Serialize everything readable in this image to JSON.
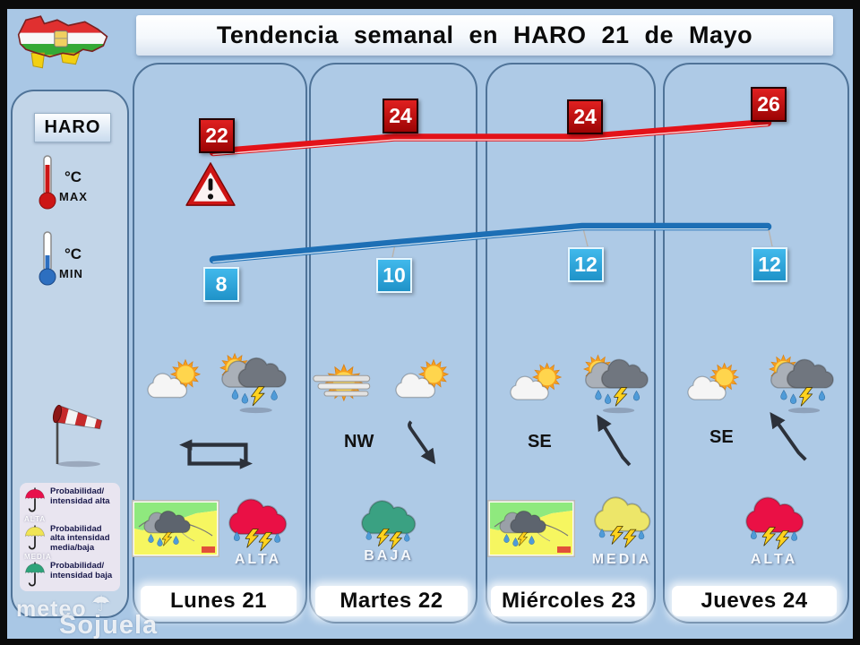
{
  "title": "Tendencia semanal en HARO 21 de Mayo",
  "sidebar": {
    "station": "HARO",
    "max_unit": "°C",
    "max_label": "MAX",
    "min_unit": "°C",
    "min_label": "MIN",
    "legend": [
      {
        "umbrella_color": "#e8104c",
        "tag": "ALTA",
        "text": "Probabilidad/ intensidad alta"
      },
      {
        "umbrella_color": "#f0e455",
        "tag": "MEDIA",
        "text": "Probabilidad alta intensidad media/baja"
      },
      {
        "umbrella_color": "#2ea37a",
        "tag": "",
        "text": "Probabilidad/ intensidad baja"
      }
    ],
    "watermark": {
      "word1": "meteo",
      "word2": "Sojuela",
      "umbrella_glyph": "☂"
    }
  },
  "days": [
    {
      "name": "Lunes 21",
      "wind_label": "",
      "wind_type": "variable-loop",
      "precip_level": "ALTA",
      "precip_color": "#ea1045",
      "has_warning_map": true,
      "has_alert_triangle": true
    },
    {
      "name": "Martes 22",
      "wind_label": "NW",
      "wind_type": "arrow-to-southeast",
      "precip_level": "BAJA",
      "precip_color": "#3aa182",
      "has_warning_map": false,
      "has_alert_triangle": false
    },
    {
      "name": "Miércoles 23",
      "wind_label": "SE",
      "wind_type": "arrow-to-northwest",
      "precip_level": "MEDIA",
      "precip_color": "#ede669",
      "has_warning_map": true,
      "has_alert_triangle": false
    },
    {
      "name": "Jueves 24",
      "wind_label": "SE",
      "wind_type": "arrow-to-northwest",
      "precip_level": "ALTA",
      "precip_color": "#ea1045",
      "has_warning_map": false,
      "has_alert_triangle": false
    }
  ],
  "chart_data": {
    "type": "line",
    "title": "Tendencia semanal en HARO 21 de Mayo",
    "categories": [
      "Lunes 21",
      "Martes 22",
      "Miércoles 23",
      "Jueves 24"
    ],
    "series": [
      {
        "name": "Temperatura máxima (°C)",
        "color": "#e31219",
        "values": [
          22,
          24,
          24,
          26
        ]
      },
      {
        "name": "Temperatura mínima (°C)",
        "color": "#1d6fb5",
        "values": [
          8,
          10,
          12,
          12
        ]
      }
    ],
    "ylim": [
      6,
      28
    ],
    "grid": false,
    "legend_position": "none",
    "annotations": [
      {
        "day": "Lunes 21",
        "type": "weather-warning-triangle"
      }
    ]
  }
}
